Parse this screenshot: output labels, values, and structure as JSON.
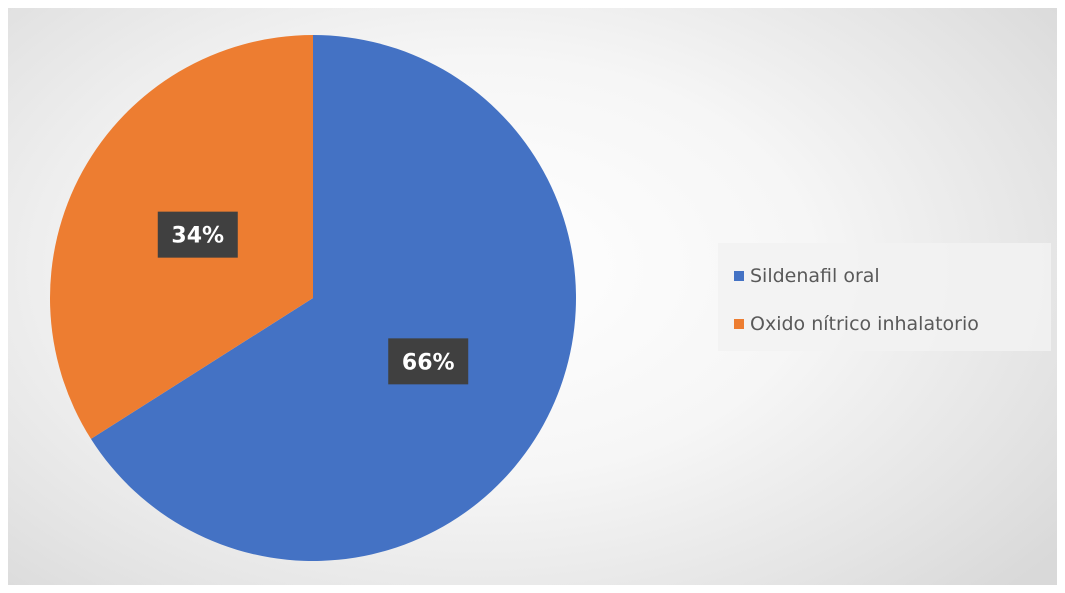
{
  "chart_data": {
    "type": "pie",
    "categories": [
      "Sildenafil oral",
      "Oxido nítrico inhalatorio"
    ],
    "values": [
      66,
      34
    ],
    "labels": [
      "66%",
      "34%"
    ],
    "colors": [
      "#4472C4",
      "#ED7D31"
    ],
    "legend_position": "right",
    "start_angle": "12 o'clock, clockwise"
  }
}
